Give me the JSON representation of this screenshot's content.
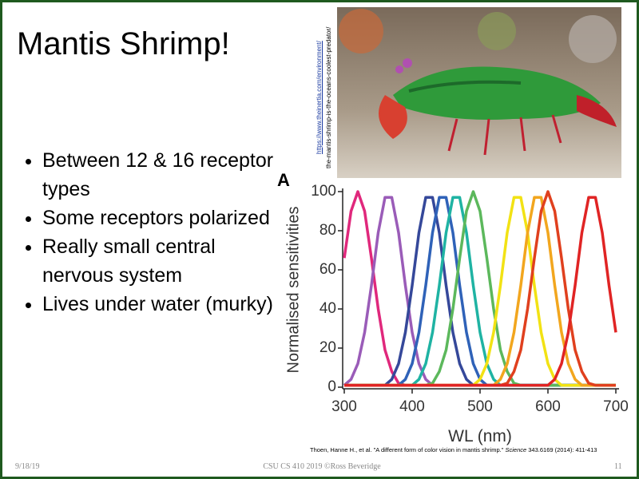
{
  "title": "Mantis Shrimp!",
  "bullets": [
    "Between 12 & 16 receptor types",
    "Some receptors polarized",
    "Really small central nervous system",
    "Lives under water (murky)"
  ],
  "image_credit": [
    "https://www.theinertia.com/environment/",
    "the-mantis-shrimp-is-the-oceans-coolest-predator/"
  ],
  "chart_data": {
    "type": "line",
    "panel_label": "A",
    "y_label": "Normalised sensitivities",
    "x_label": "WL (nm)",
    "x": [
      300,
      310,
      320,
      330,
      340,
      350,
      360,
      370,
      380,
      390,
      400,
      410,
      420,
      430,
      440,
      450,
      460,
      470,
      480,
      490,
      500,
      510,
      520,
      530,
      540,
      550,
      560,
      570,
      580,
      590,
      600,
      610,
      620,
      630,
      640,
      650,
      660,
      670,
      680,
      690,
      700
    ],
    "xlim": [
      300,
      700
    ],
    "ylim": [
      0,
      100
    ],
    "xticks": [
      300,
      400,
      500,
      600,
      700
    ],
    "yticks": [
      0,
      20,
      40,
      60,
      80,
      100
    ],
    "series": [
      {
        "color": "#e0287c",
        "values": [
          66,
          90,
          100,
          90,
          66,
          40,
          19,
          8,
          2,
          1,
          1,
          1,
          1,
          1,
          1,
          1,
          1,
          1,
          1,
          1,
          1,
          1,
          1,
          1,
          1,
          1,
          1,
          1,
          1,
          1,
          1,
          1,
          1,
          1,
          1,
          1,
          1,
          1,
          1,
          1,
          1
        ]
      },
      {
        "color": "#9a5cb8",
        "values": [
          1,
          4,
          12,
          28,
          52,
          79,
          97,
          97,
          79,
          52,
          28,
          12,
          4,
          1,
          1,
          1,
          1,
          1,
          1,
          1,
          1,
          1,
          1,
          1,
          1,
          1,
          1,
          1,
          1,
          1,
          1,
          1,
          1,
          1,
          1,
          1,
          1,
          1,
          1,
          1,
          1
        ]
      },
      {
        "color": "#35489a",
        "values": [
          1,
          1,
          1,
          1,
          1,
          1,
          1,
          4,
          12,
          28,
          52,
          79,
          97,
          97,
          79,
          52,
          28,
          12,
          4,
          1,
          1,
          1,
          1,
          1,
          1,
          1,
          1,
          1,
          1,
          1,
          1,
          1,
          1,
          1,
          1,
          1,
          1,
          1,
          1,
          1,
          1
        ]
      },
      {
        "color": "#2f62b8",
        "values": [
          1,
          1,
          1,
          1,
          1,
          1,
          1,
          1,
          1,
          4,
          12,
          28,
          52,
          79,
          97,
          97,
          79,
          52,
          28,
          12,
          4,
          1,
          1,
          1,
          1,
          1,
          1,
          1,
          1,
          1,
          1,
          1,
          1,
          1,
          1,
          1,
          1,
          1,
          1,
          1,
          1
        ]
      },
      {
        "color": "#1fb3a3",
        "values": [
          1,
          1,
          1,
          1,
          1,
          1,
          1,
          1,
          1,
          1,
          1,
          4,
          12,
          28,
          52,
          79,
          97,
          97,
          79,
          52,
          28,
          12,
          4,
          1,
          1,
          1,
          1,
          1,
          1,
          1,
          1,
          1,
          1,
          1,
          1,
          1,
          1,
          1,
          1,
          1,
          1
        ]
      },
      {
        "color": "#5cb85c",
        "values": [
          1,
          1,
          1,
          1,
          1,
          1,
          1,
          1,
          1,
          1,
          1,
          1,
          1,
          2,
          8,
          19,
          40,
          66,
          90,
          100,
          90,
          66,
          40,
          19,
          8,
          2,
          1,
          1,
          1,
          1,
          1,
          1,
          1,
          1,
          1,
          1,
          1,
          1,
          1,
          1,
          1
        ]
      },
      {
        "color": "#f2e214",
        "values": [
          1,
          1,
          1,
          1,
          1,
          1,
          1,
          1,
          1,
          1,
          1,
          1,
          1,
          1,
          1,
          1,
          1,
          1,
          1,
          1,
          4,
          12,
          28,
          52,
          79,
          97,
          97,
          79,
          52,
          28,
          12,
          4,
          1,
          1,
          1,
          1,
          1,
          1,
          1,
          1,
          1
        ]
      },
      {
        "color": "#f2a61e",
        "values": [
          1,
          1,
          1,
          1,
          1,
          1,
          1,
          1,
          1,
          1,
          1,
          1,
          1,
          1,
          1,
          1,
          1,
          1,
          1,
          1,
          1,
          1,
          1,
          4,
          12,
          28,
          52,
          79,
          97,
          97,
          79,
          52,
          28,
          12,
          4,
          1,
          1,
          1,
          1,
          1,
          1
        ]
      },
      {
        "color": "#e0401e",
        "values": [
          1,
          1,
          1,
          1,
          1,
          1,
          1,
          1,
          1,
          1,
          1,
          1,
          1,
          1,
          1,
          1,
          1,
          1,
          1,
          1,
          1,
          1,
          1,
          1,
          2,
          8,
          19,
          40,
          66,
          90,
          100,
          90,
          66,
          40,
          19,
          8,
          2,
          1,
          1,
          1,
          1
        ]
      },
      {
        "color": "#e02424",
        "values": [
          1,
          1,
          1,
          1,
          1,
          1,
          1,
          1,
          1,
          1,
          1,
          1,
          1,
          1,
          1,
          1,
          1,
          1,
          1,
          1,
          1,
          1,
          1,
          1,
          1,
          1,
          1,
          1,
          1,
          1,
          1,
          4,
          12,
          28,
          52,
          79,
          97,
          97,
          79,
          52,
          28
        ]
      }
    ]
  },
  "citation": {
    "text": "Thoen, Hanne H., et al. \"A different form of color vision in mantis shrimp.\"",
    "journal": "Science",
    "rest": "343.6169 (2014): 411-413"
  },
  "footer": {
    "date": "9/18/19",
    "course": "CSU CS 410 2019 ©Ross Beveridge",
    "page": "11"
  }
}
